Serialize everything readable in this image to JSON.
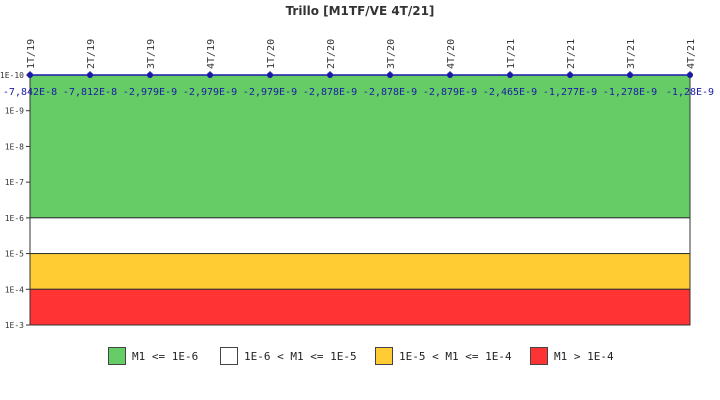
{
  "chart_data": {
    "type": "line",
    "title": "Trillo [M1TF/VE 4T/21]",
    "x": [
      "1T/19",
      "2T/19",
      "3T/19",
      "4T/19",
      "1T/20",
      "2T/20",
      "3T/20",
      "4T/20",
      "1T/21",
      "2T/21",
      "3T/21",
      "4T/21"
    ],
    "data_labels": [
      "-7,842E-8",
      "-7,812E-8",
      "-2,979E-9",
      "-2,979E-9",
      "-2,979E-9",
      "-2,878E-9",
      "-2,878E-9",
      "-2,879E-9",
      "-2,465E-9",
      "-1,277E-9",
      "-1,278E-9",
      "-1,28E-9"
    ],
    "values": [
      -7.842e-08,
      -7.812e-08,
      -2.979e-09,
      -2.979e-09,
      -2.979e-09,
      -2.878e-09,
      -2.878e-09,
      -2.879e-09,
      -2.465e-09,
      -1.277e-09,
      -1.278e-09,
      -1.28e-09
    ],
    "y_scale": "log",
    "ylim": [
      1e-10,
      0.001
    ],
    "y_ticks": [
      {
        "label": "1E-10",
        "value": 1e-10
      },
      {
        "label": "1E-9",
        "value": 1e-09
      },
      {
        "label": "1E-8",
        "value": 1e-08
      },
      {
        "label": "1E-7",
        "value": 1e-07
      },
      {
        "label": "1E-6",
        "value": 1e-06
      },
      {
        "label": "1E-5",
        "value": 1e-05
      },
      {
        "label": "1E-4",
        "value": 0.0001
      },
      {
        "label": "1E-3",
        "value": 0.001
      }
    ],
    "bands": [
      {
        "label": "M1 <= 1E-6",
        "from": 1e-10,
        "to": 1e-06,
        "color": "#66cc66"
      },
      {
        "label": "1E-6 < M1 <= 1E-5",
        "from": 1e-06,
        "to": 1e-05,
        "color": "#ffffff"
      },
      {
        "label": "1E-5 < M1 <= 1E-4",
        "from": 1e-05,
        "to": 0.0001,
        "color": "#ffcc33"
      },
      {
        "label": "M1 > 1E-4",
        "from": 0.0001,
        "to": 0.001,
        "color": "#ff3333"
      }
    ],
    "series_color": "#1a1aa6",
    "legend_position": "bottom"
  }
}
